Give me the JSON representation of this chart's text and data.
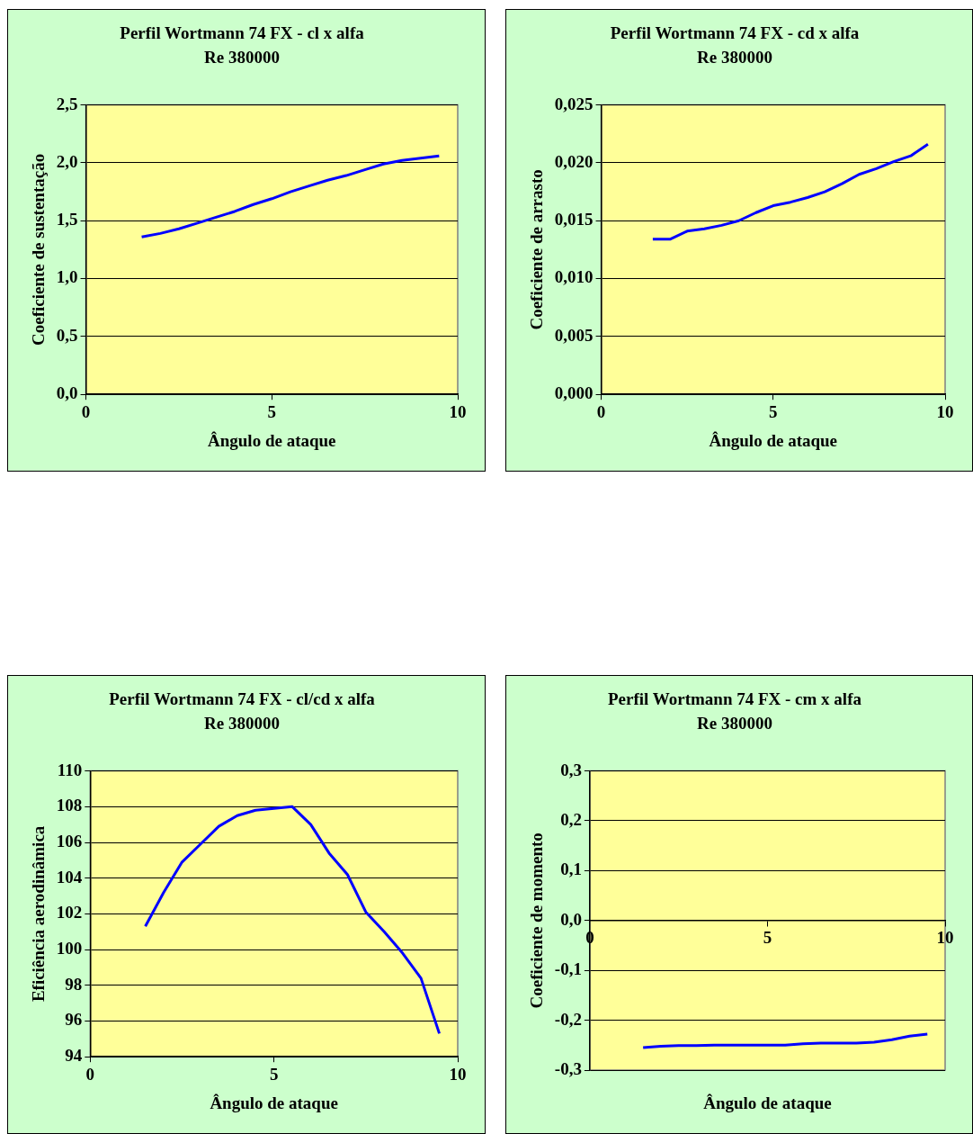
{
  "chart_data": [
    {
      "type": "line",
      "title": "Perfil Wortmann 74 FX - cl x alfa",
      "subtitle": "Re 380000",
      "xlabel": "Ângulo de ataque",
      "ylabel": "Coeficiente de sustentação",
      "x": [
        1.5,
        2,
        2.5,
        3,
        3.5,
        4,
        4.5,
        5,
        5.5,
        6,
        6.5,
        7,
        7.5,
        8,
        8.5,
        9,
        9.5
      ],
      "series": [
        {
          "color": "#0000ff",
          "values": [
            1.36,
            1.39,
            1.43,
            1.48,
            1.53,
            1.58,
            1.64,
            1.69,
            1.75,
            1.8,
            1.85,
            1.89,
            1.94,
            1.99,
            2.02,
            2.04,
            2.06
          ]
        }
      ],
      "xlim": [
        0,
        10
      ],
      "xticks": [
        0,
        5,
        10
      ],
      "ylim": [
        0,
        2.5
      ],
      "yticks": [
        {
          "value": 0,
          "label": "0,0"
        },
        {
          "value": 0.5,
          "label": "0,5"
        },
        {
          "value": 1,
          "label": "1,0"
        },
        {
          "value": 1.5,
          "label": "1,5"
        },
        {
          "value": 2,
          "label": "2,0"
        },
        {
          "value": 2.5,
          "label": "2,5"
        }
      ],
      "grid": "y",
      "legend": false,
      "marker": "none",
      "line_style": "solid"
    },
    {
      "type": "line",
      "title": "Perfil Wortmann 74 FX - cd x alfa",
      "subtitle": "Re 380000",
      "xlabel": "Ângulo de ataque",
      "ylabel": "Coeficiente de arrasto",
      "x": [
        1.5,
        2,
        2.5,
        3,
        3.5,
        4,
        4.5,
        5,
        5.5,
        6,
        6.5,
        7,
        7.5,
        8,
        8.5,
        9,
        9.5
      ],
      "series": [
        {
          "color": "#0000ff",
          "values": [
            0.0134,
            0.0134,
            0.0141,
            0.0143,
            0.0146,
            0.015,
            0.0157,
            0.0163,
            0.0166,
            0.017,
            0.0175,
            0.0182,
            0.019,
            0.0195,
            0.0201,
            0.0206,
            0.0216
          ]
        }
      ],
      "xlim": [
        0,
        10
      ],
      "xticks": [
        0,
        5,
        10
      ],
      "ylim": [
        0,
        0.025
      ],
      "yticks": [
        {
          "value": 0,
          "label": "0,000"
        },
        {
          "value": 0.005,
          "label": "0,005"
        },
        {
          "value": 0.01,
          "label": "0,010"
        },
        {
          "value": 0.015,
          "label": "0,015"
        },
        {
          "value": 0.02,
          "label": "0,020"
        },
        {
          "value": 0.025,
          "label": "0,025"
        }
      ],
      "grid": "y",
      "legend": false,
      "marker": "none",
      "line_style": "solid"
    },
    {
      "type": "line",
      "title": "Perfil Wortmann 74 FX - cl/cd x alfa",
      "subtitle": "Re 380000",
      "xlabel": "Ângulo de ataque",
      "ylabel": "Eficiência aerodinâmica",
      "x": [
        1.5,
        2,
        2.5,
        3,
        3.5,
        4,
        4.5,
        5,
        5.5,
        6,
        6.5,
        7,
        7.5,
        8,
        8.5,
        9,
        9.5
      ],
      "series": [
        {
          "color": "#0000ff",
          "values": [
            101.3,
            103.2,
            104.9,
            105.9,
            106.9,
            107.5,
            107.8,
            107.9,
            108,
            107,
            105.4,
            104.2,
            102.1,
            101,
            99.8,
            98.4,
            95.3
          ]
        }
      ],
      "xlim": [
        0,
        10
      ],
      "xticks": [
        0,
        5,
        10
      ],
      "ylim": [
        94,
        110
      ],
      "yticks": [
        94,
        96,
        98,
        100,
        102,
        104,
        106,
        108,
        110
      ],
      "grid": "y",
      "legend": false,
      "marker": "none",
      "line_style": "solid"
    },
    {
      "type": "line",
      "title": "Perfil Wortmann 74 FX - cm x alfa",
      "subtitle": "Re 380000",
      "xlabel": "Ângulo de ataque",
      "ylabel": "Coeficiente de momento",
      "x": [
        1.5,
        2,
        2.5,
        3,
        3.5,
        4,
        4.5,
        5,
        5.5,
        6,
        6.5,
        7,
        7.5,
        8,
        8.5,
        9,
        9.5
      ],
      "series": [
        {
          "color": "#0000ff",
          "values": [
            -0.255,
            -0.252,
            -0.251,
            -0.251,
            -0.25,
            -0.25,
            -0.25,
            -0.25,
            -0.25,
            -0.247,
            -0.246,
            -0.246,
            -0.246,
            -0.244,
            -0.239,
            -0.232,
            -0.228
          ]
        }
      ],
      "xlim": [
        0,
        10
      ],
      "xticks": [
        0,
        5,
        10
      ],
      "ylim": [
        -0.3,
        0.3
      ],
      "yticks": [
        {
          "value": -0.3,
          "label": "-0,3"
        },
        {
          "value": -0.2,
          "label": "-0,2"
        },
        {
          "value": -0.1,
          "label": "-0,1"
        },
        {
          "value": 0,
          "label": "0,0"
        },
        {
          "value": 0.1,
          "label": "0,1"
        },
        {
          "value": 0.2,
          "label": "0,2"
        },
        {
          "value": 0.3,
          "label": "0,3"
        }
      ],
      "grid": "y",
      "legend": false,
      "marker": "none",
      "line_style": "solid"
    }
  ]
}
